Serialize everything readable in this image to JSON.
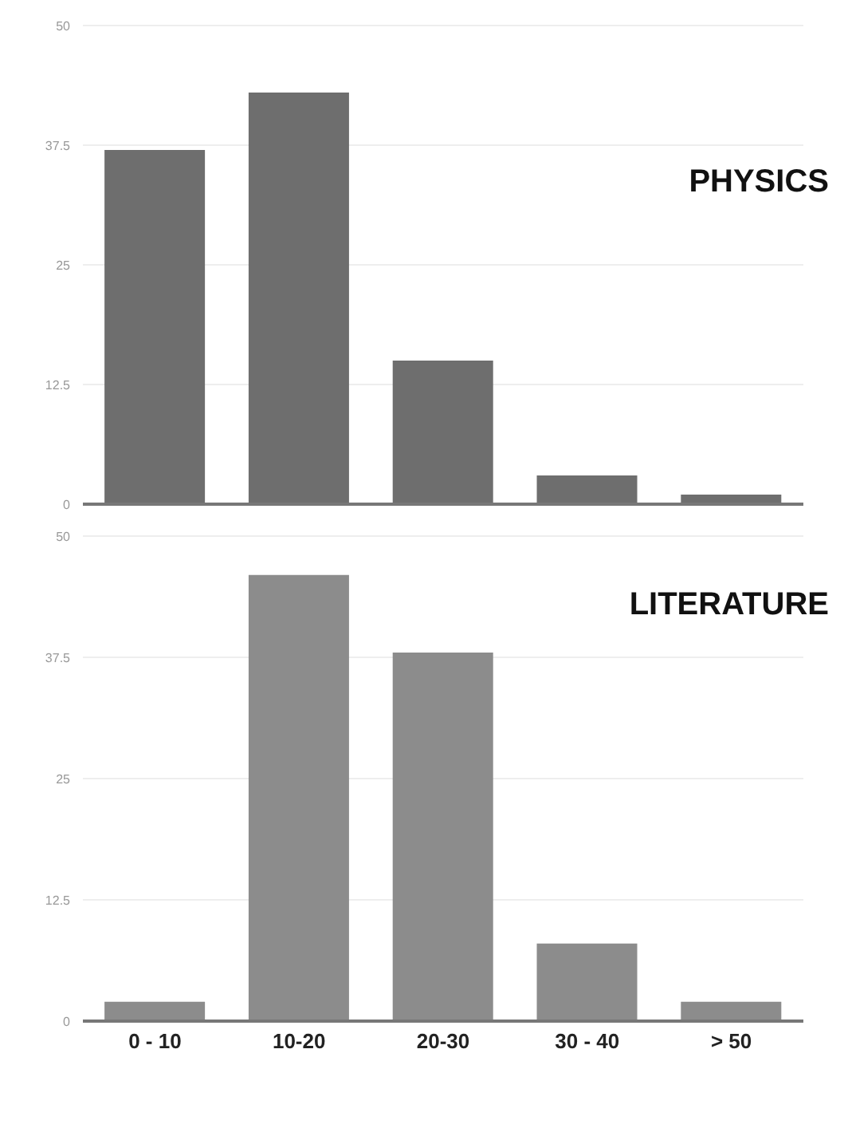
{
  "chart_data": [
    {
      "type": "bar",
      "title": "PHYSICS",
      "categories": [
        null,
        null,
        null,
        null,
        null
      ],
      "values": [
        37,
        43,
        15,
        3,
        1
      ],
      "color": "#6e6e6e",
      "ylim": [
        0,
        50
      ],
      "yticks": [
        0,
        12.5,
        25,
        37.5,
        50
      ],
      "grid": "y"
    },
    {
      "type": "bar",
      "title": "LITERATURE",
      "categories": [
        "0 - 10",
        "10-20",
        "20-30",
        "30 - 40",
        "> 50"
      ],
      "values": [
        2,
        46,
        38,
        8,
        2
      ],
      "color": "#8c8c8c",
      "ylim": [
        0,
        50
      ],
      "yticks": [
        0,
        12.5,
        25,
        37.5,
        50
      ],
      "grid": "y"
    }
  ]
}
